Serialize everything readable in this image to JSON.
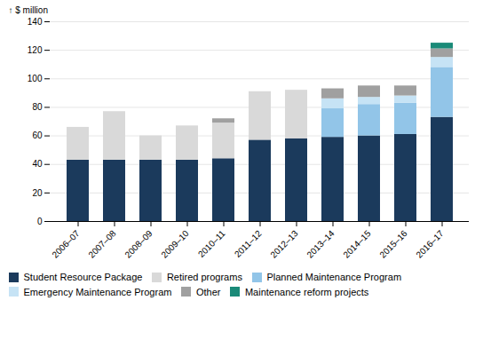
{
  "chart_data": {
    "type": "bar",
    "stacked": true,
    "grid": true,
    "ylabel": "$ million",
    "categories": [
      "2006–07",
      "2007–08",
      "2008–09",
      "2009–10",
      "2010–11",
      "2011–12",
      "2012–13",
      "2013–14",
      "2014–15",
      "2015–16",
      "2016–17"
    ],
    "series": [
      {
        "name": "Student Resource Package",
        "color": "#1b3a5c",
        "values": [
          43,
          43,
          43,
          43,
          44,
          57,
          58,
          59,
          60,
          61,
          73
        ]
      },
      {
        "name": "Retired programs",
        "color": "#d9d9d9",
        "values": [
          23,
          34,
          17,
          24,
          25,
          34,
          34,
          0,
          0,
          0,
          0
        ]
      },
      {
        "name": "Planned Maintenance Program",
        "color": "#92c5e8",
        "values": [
          0,
          0,
          0,
          0,
          0,
          0,
          0,
          20,
          22,
          22,
          35
        ]
      },
      {
        "name": "Emergency Maintenance Program",
        "color": "#c6e3f5",
        "values": [
          0,
          0,
          0,
          0,
          0,
          0,
          0,
          7,
          5,
          5,
          7
        ]
      },
      {
        "name": "Other",
        "color": "#a0a0a0",
        "values": [
          0,
          0,
          0,
          0,
          3,
          0,
          0,
          7,
          8,
          7,
          6
        ]
      },
      {
        "name": "Maintenance reform projects",
        "color": "#1a8a78",
        "values": [
          0,
          0,
          0,
          0,
          0,
          0,
          0,
          0,
          0,
          0,
          4
        ]
      }
    ],
    "ylim": [
      0,
      140
    ],
    "yticks": [
      0,
      20,
      40,
      60,
      80,
      100,
      120,
      140
    ],
    "legend": "bottom"
  }
}
